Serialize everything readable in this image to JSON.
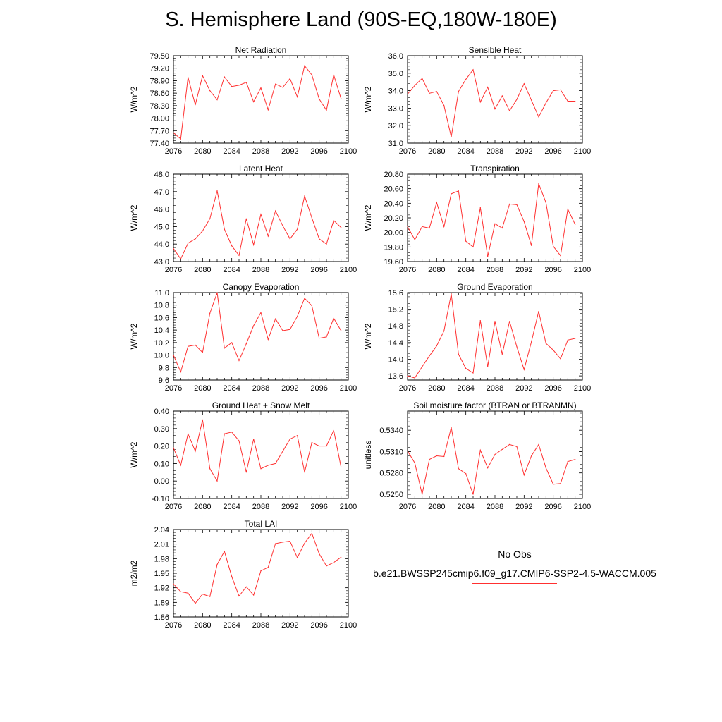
{
  "title": "S. Hemisphere Land (90S-EQ,180W-180E)",
  "legend": {
    "obs_label": "No Obs",
    "case_label": "b.e21.BWSSP245cmip6.f09_g17.CMIP6-SSP2-4.5-WACCM.005",
    "obs_color": "#3a3acc",
    "case_color": "#ff3030"
  },
  "chart_data": [
    {
      "type": "line",
      "title": "Net Radiation",
      "ylabel": "W/m^2",
      "xlim": [
        2076,
        2100
      ],
      "ylim": [
        77.4,
        79.5
      ],
      "xticks": [
        2076,
        2080,
        2084,
        2088,
        2092,
        2096,
        2100
      ],
      "yticks": [
        "79.50",
        "79.20",
        "78.90",
        "78.60",
        "78.30",
        "78.00",
        "77.70",
        "77.40"
      ],
      "x": [
        2076,
        2077,
        2078,
        2079,
        2080,
        2081,
        2082,
        2083,
        2084,
        2085,
        2086,
        2087,
        2088,
        2089,
        2090,
        2091,
        2092,
        2093,
        2094,
        2095,
        2096,
        2097,
        2098,
        2099
      ],
      "values": [
        77.65,
        77.5,
        78.98,
        78.32,
        79.02,
        78.66,
        78.44,
        78.99,
        78.76,
        78.79,
        78.86,
        78.39,
        78.73,
        78.2,
        78.82,
        78.74,
        78.95,
        78.51,
        79.26,
        79.04,
        78.46,
        78.19,
        79.04,
        78.47
      ]
    },
    {
      "type": "line",
      "title": "Sensible Heat",
      "ylabel": "W/m^2",
      "xlim": [
        2076,
        2100
      ],
      "ylim": [
        31.0,
        36.0
      ],
      "xticks": [
        2076,
        2080,
        2084,
        2088,
        2092,
        2096,
        2100
      ],
      "yticks": [
        "36.0",
        "35.0",
        "34.0",
        "33.0",
        "32.0",
        "31.0"
      ],
      "x": [
        2076,
        2077,
        2078,
        2079,
        2080,
        2081,
        2082,
        2083,
        2084,
        2085,
        2086,
        2087,
        2088,
        2089,
        2090,
        2091,
        2092,
        2093,
        2094,
        2095,
        2096,
        2097,
        2098,
        2099
      ],
      "values": [
        33.8,
        34.3,
        34.7,
        33.85,
        33.95,
        33.15,
        31.35,
        33.95,
        34.65,
        35.2,
        33.35,
        34.2,
        32.95,
        33.7,
        32.85,
        33.5,
        34.4,
        33.45,
        32.5,
        33.3,
        34.0,
        34.05,
        33.4,
        33.4
      ]
    },
    {
      "type": "line",
      "title": "Latent Heat",
      "ylabel": "W/m^2",
      "xlim": [
        2076,
        2100
      ],
      "ylim": [
        43.0,
        48.0
      ],
      "xticks": [
        2076,
        2080,
        2084,
        2088,
        2092,
        2096,
        2100
      ],
      "yticks": [
        "48.0",
        "47.0",
        "46.0",
        "45.0",
        "44.0",
        "43.0"
      ],
      "x": [
        2076,
        2077,
        2078,
        2079,
        2080,
        2081,
        2082,
        2083,
        2084,
        2085,
        2086,
        2087,
        2088,
        2089,
        2090,
        2091,
        2092,
        2093,
        2094,
        2095,
        2096,
        2097,
        2098,
        2099
      ],
      "values": [
        43.75,
        43.15,
        44.05,
        44.3,
        44.75,
        45.45,
        47.05,
        44.85,
        43.9,
        43.35,
        45.45,
        43.95,
        45.7,
        44.45,
        45.9,
        45.05,
        44.3,
        44.85,
        46.75,
        45.5,
        44.3,
        44.0,
        45.35,
        44.95
      ]
    },
    {
      "type": "line",
      "title": "Transpiration",
      "ylabel": "W/m^2",
      "xlim": [
        2076,
        2100
      ],
      "ylim": [
        19.6,
        20.8
      ],
      "xticks": [
        2076,
        2080,
        2084,
        2088,
        2092,
        2096,
        2100
      ],
      "yticks": [
        "20.80",
        "20.60",
        "20.40",
        "20.20",
        "20.00",
        "19.80",
        "19.60"
      ],
      "x": [
        2076,
        2077,
        2078,
        2079,
        2080,
        2081,
        2082,
        2083,
        2084,
        2085,
        2086,
        2087,
        2088,
        2089,
        2090,
        2091,
        2092,
        2093,
        2094,
        2095,
        2096,
        2097,
        2098,
        2099
      ],
      "values": [
        20.08,
        19.9,
        20.08,
        20.06,
        20.41,
        20.08,
        20.53,
        20.57,
        19.88,
        19.8,
        20.34,
        19.67,
        20.12,
        20.06,
        20.39,
        20.38,
        20.15,
        19.82,
        20.67,
        20.41,
        19.81,
        19.68,
        20.32,
        20.11
      ]
    },
    {
      "type": "line",
      "title": "Canopy Evaporation",
      "ylabel": "W/m^2",
      "xlim": [
        2076,
        2100
      ],
      "ylim": [
        9.6,
        11.0
      ],
      "xticks": [
        2076,
        2080,
        2084,
        2088,
        2092,
        2096,
        2100
      ],
      "yticks": [
        "11.0",
        "10.8",
        "10.6",
        "10.4",
        "10.2",
        "10.0",
        "9.8",
        "9.6"
      ],
      "x": [
        2076,
        2077,
        2078,
        2079,
        2080,
        2081,
        2082,
        2083,
        2084,
        2085,
        2086,
        2087,
        2088,
        2089,
        2090,
        2091,
        2092,
        2093,
        2094,
        2095,
        2096,
        2097,
        2098,
        2099
      ],
      "values": [
        10.0,
        9.73,
        10.14,
        10.16,
        10.04,
        10.67,
        11.0,
        10.11,
        10.2,
        9.91,
        10.18,
        10.47,
        10.68,
        10.25,
        10.58,
        10.39,
        10.41,
        10.62,
        10.91,
        10.79,
        10.27,
        10.29,
        10.59,
        10.39
      ]
    },
    {
      "type": "line",
      "title": "Ground Evaporation",
      "ylabel": "W/m^2",
      "xlim": [
        2076,
        2100
      ],
      "ylim": [
        13.5,
        15.6
      ],
      "xticks": [
        2076,
        2080,
        2084,
        2088,
        2092,
        2096,
        2100
      ],
      "yticks": [
        "15.6",
        "15.2",
        "14.8",
        "14.4",
        "14.0",
        "13.6"
      ],
      "x": [
        2076,
        2077,
        2078,
        2079,
        2080,
        2081,
        2082,
        2083,
        2084,
        2085,
        2086,
        2087,
        2088,
        2089,
        2090,
        2091,
        2092,
        2093,
        2094,
        2095,
        2096,
        2097,
        2098,
        2099
      ],
      "values": [
        13.6,
        13.55,
        13.82,
        14.08,
        14.32,
        14.68,
        15.57,
        14.12,
        13.78,
        13.67,
        14.93,
        13.82,
        14.91,
        14.12,
        14.91,
        14.3,
        13.75,
        14.42,
        15.15,
        14.38,
        14.22,
        14.01,
        14.46,
        14.5
      ]
    },
    {
      "type": "line",
      "title": "Ground Heat + Snow Melt",
      "ylabel": "W/m^2",
      "xlim": [
        2076,
        2100
      ],
      "ylim": [
        -0.1,
        0.4
      ],
      "xticks": [
        2076,
        2080,
        2084,
        2088,
        2092,
        2096,
        2100
      ],
      "yticks": [
        "0.40",
        "0.30",
        "0.20",
        "0.10",
        "0.00",
        "-0.10"
      ],
      "x": [
        2076,
        2077,
        2078,
        2079,
        2080,
        2081,
        2082,
        2083,
        2084,
        2085,
        2086,
        2087,
        2088,
        2089,
        2090,
        2091,
        2092,
        2093,
        2094,
        2095,
        2096,
        2097,
        2098,
        2099
      ],
      "values": [
        0.19,
        0.09,
        0.27,
        0.17,
        0.35,
        0.07,
        0.0,
        0.27,
        0.28,
        0.23,
        0.05,
        0.24,
        0.07,
        0.09,
        0.1,
        0.17,
        0.24,
        0.26,
        0.05,
        0.22,
        0.2,
        0.2,
        0.29,
        0.08
      ]
    },
    {
      "type": "line",
      "title": "Soil moisture factor (BTRAN or BTRANMN)",
      "ylabel": "unitless",
      "xlim": [
        2076,
        2100
      ],
      "ylim": [
        0.5244,
        0.5367
      ],
      "xticks": [
        2076,
        2080,
        2084,
        2088,
        2092,
        2096,
        2100
      ],
      "yticks": [
        "0.5340",
        "0.5310",
        "0.5280",
        "0.5250"
      ],
      "x": [
        2076,
        2077,
        2078,
        2079,
        2080,
        2081,
        2082,
        2083,
        2084,
        2085,
        2086,
        2087,
        2088,
        2089,
        2090,
        2091,
        2092,
        2093,
        2094,
        2095,
        2096,
        2097,
        2098,
        2099
      ],
      "values": [
        0.5311,
        0.5294,
        0.525,
        0.5299,
        0.5304,
        0.5303,
        0.5344,
        0.5286,
        0.5279,
        0.525,
        0.5312,
        0.5287,
        0.5306,
        0.5313,
        0.532,
        0.5317,
        0.5277,
        0.5304,
        0.532,
        0.5287,
        0.5264,
        0.5265,
        0.5296,
        0.5299
      ]
    },
    {
      "type": "line",
      "title": "Total LAI",
      "ylabel": "m2/m2",
      "xlim": [
        2076,
        2100
      ],
      "ylim": [
        1.86,
        2.04
      ],
      "xticks": [
        2076,
        2080,
        2084,
        2088,
        2092,
        2096,
        2100
      ],
      "yticks": [
        "2.04",
        "2.01",
        "1.98",
        "1.95",
        "1.92",
        "1.89",
        "1.86"
      ],
      "x": [
        2076,
        2077,
        2078,
        2079,
        2080,
        2081,
        2082,
        2083,
        2084,
        2085,
        2086,
        2087,
        2088,
        2089,
        2090,
        2091,
        2092,
        2093,
        2094,
        2095,
        2096,
        2097,
        2098,
        2099
      ],
      "values": [
        1.928,
        1.912,
        1.909,
        1.888,
        1.907,
        1.902,
        1.968,
        1.995,
        1.943,
        1.903,
        1.922,
        1.905,
        1.955,
        1.962,
        2.011,
        2.014,
        2.016,
        1.982,
        2.012,
        2.032,
        1.99,
        1.965,
        1.972,
        1.983
      ]
    }
  ]
}
